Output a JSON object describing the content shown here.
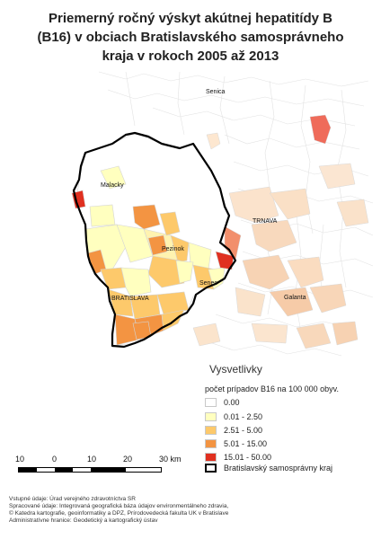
{
  "title": {
    "line1": "Priemerný ročný výskyt akútnej hepatitídy B",
    "line2": "(B16) v obciach Bratislavského samosprávneho",
    "line3": "kraja v rokoch 2005 až 2013"
  },
  "map_labels": {
    "senica": "Senica",
    "malacky": "Malacky",
    "trnava": "TRNAVA",
    "pezinok": "Pezinok",
    "senec": "Senec",
    "bratislava": "BRATISLAVA",
    "galanta": "Galanta"
  },
  "legend": {
    "title": "Vysvetlivky",
    "subtitle": "počet prípadov B16 na 100 000 obyv.",
    "items": [
      {
        "label": "0.00",
        "color": "#ffffff"
      },
      {
        "label": "0.01 - 2.50",
        "color": "#ffffbf"
      },
      {
        "label": "2.51 - 5.00",
        "color": "#fdc96b"
      },
      {
        "label": "5.01 - 15.00",
        "color": "#f39442"
      },
      {
        "label": "15.01 - 50.00",
        "color": "#e03020"
      }
    ],
    "boundary_label": "Bratislavský samosprávny kraj"
  },
  "scale": {
    "labels": [
      "10",
      "0",
      "10",
      "20",
      "30 km"
    ]
  },
  "sources": {
    "line1": "Vstupné údaje: Úrad verejného zdravotníctva SR",
    "line2": "Spracované údaje: Integrovaná geografická báza údajov environmentálneho zdravia,",
    "line3": "© Katedra kartografie, geoinformatiky a DPZ, Prírodovedecká fakulta UK v Bratislave",
    "line4": "Administratívne hranice: Geodetický a kartografický ústav"
  },
  "colors": {
    "outside_light": "#fbe7d8",
    "outside_mid": "#f6c9a8",
    "outside_dark": "#ef9a8a",
    "border": "#d0d0d0",
    "region_border": "#000000"
  }
}
